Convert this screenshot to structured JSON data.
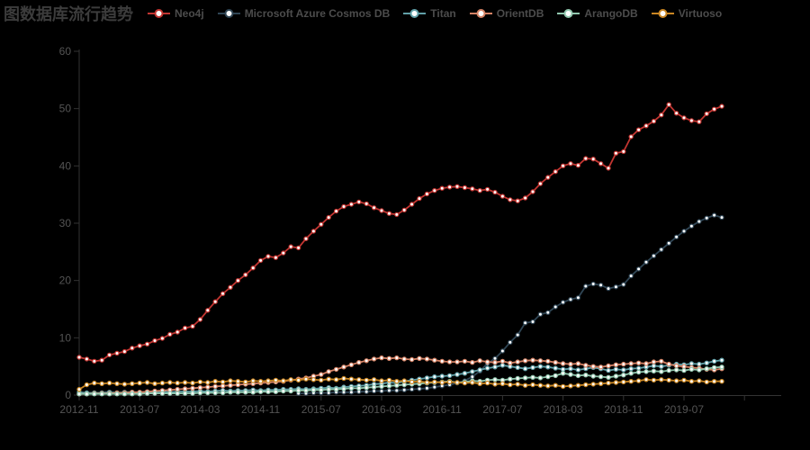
{
  "chart_data": {
    "type": "line",
    "title": "图数据库流行趋势",
    "xlabel": "",
    "ylabel": "",
    "ylim": [
      0,
      60
    ],
    "y_interval": 10,
    "grid": false,
    "legend_position": "top",
    "background": "#000000",
    "axis": {
      "line_color": "#333333",
      "label_color": "#545454"
    },
    "x_tick_interval": 8,
    "x_tick_labels_visible": [
      "2012-11",
      "2013-07",
      "2014-03",
      "2014-11",
      "2015-07",
      "2016-03",
      "2016-11",
      "2017-07",
      "2018-03",
      "2018-11",
      "2019-07"
    ],
    "y_tick_labels": [
      "0",
      "10",
      "20",
      "30",
      "40",
      "50",
      "60"
    ],
    "x": [
      "2012-11",
      "2012-12",
      "2013-01",
      "2013-02",
      "2013-03",
      "2013-04",
      "2013-05",
      "2013-06",
      "2013-07",
      "2013-08",
      "2013-09",
      "2013-10",
      "2013-11",
      "2013-12",
      "2014-01",
      "2014-02",
      "2014-03",
      "2014-04",
      "2014-05",
      "2014-06",
      "2014-07",
      "2014-08",
      "2014-09",
      "2014-10",
      "2014-11",
      "2014-12",
      "2015-01",
      "2015-02",
      "2015-03",
      "2015-04",
      "2015-05",
      "2015-06",
      "2015-07",
      "2015-08",
      "2015-09",
      "2015-10",
      "2015-11",
      "2015-12",
      "2016-01",
      "2016-02",
      "2016-03",
      "2016-04",
      "2016-05",
      "2016-06",
      "2016-07",
      "2016-08",
      "2016-09",
      "2016-10",
      "2016-11",
      "2016-12",
      "2017-01",
      "2017-02",
      "2017-03",
      "2017-04",
      "2017-05",
      "2017-06",
      "2017-07",
      "2017-08",
      "2017-09",
      "2017-10",
      "2017-11",
      "2017-12",
      "2018-01",
      "2018-02",
      "2018-03",
      "2018-04",
      "2018-05",
      "2018-06",
      "2018-07",
      "2018-08",
      "2018-09",
      "2018-10",
      "2018-11",
      "2018-12",
      "2019-01",
      "2019-02",
      "2019-03",
      "2019-04",
      "2019-05",
      "2019-06",
      "2019-07",
      "2019-08",
      "2019-09",
      "2019-10",
      "2019-11",
      "2019-12"
    ],
    "series": [
      {
        "name": "Neo4j",
        "color": "#c23531",
        "values": [
          6.6,
          6.3,
          5.9,
          6.1,
          7.0,
          7.3,
          7.6,
          8.2,
          8.6,
          8.9,
          9.5,
          9.9,
          10.6,
          11.0,
          11.7,
          12.0,
          13.2,
          14.8,
          16.3,
          17.7,
          18.8,
          20.0,
          21.0,
          22.2,
          23.5,
          24.2,
          24.0,
          24.8,
          25.9,
          25.7,
          27.3,
          28.6,
          29.8,
          31.0,
          32.1,
          32.9,
          33.3,
          33.7,
          33.4,
          32.7,
          32.2,
          31.7,
          31.5,
          32.3,
          33.3,
          34.3,
          35.1,
          35.7,
          36.1,
          36.3,
          36.4,
          36.2,
          36.0,
          35.7,
          35.9,
          35.4,
          34.7,
          34.1,
          33.9,
          34.4,
          35.5,
          36.9,
          38.0,
          39.0,
          40.0,
          40.4,
          40.1,
          41.3,
          41.2,
          40.4,
          39.6,
          42.2,
          42.5,
          45.1,
          46.3,
          47.0,
          47.8,
          48.9,
          50.7,
          49.2,
          48.4,
          47.9,
          47.7,
          49.1,
          49.9,
          50.4
        ]
      },
      {
        "name": "Microsoft Azure Cosmos DB",
        "color": "#2f4554",
        "values": [
          null,
          null,
          null,
          null,
          null,
          null,
          null,
          null,
          null,
          null,
          null,
          null,
          null,
          null,
          null,
          null,
          null,
          null,
          null,
          null,
          null,
          null,
          null,
          null,
          null,
          null,
          null,
          null,
          null,
          0.3,
          0.3,
          0.4,
          0.4,
          0.4,
          0.5,
          0.5,
          0.5,
          0.6,
          0.6,
          0.7,
          0.7,
          0.8,
          0.8,
          0.9,
          1.0,
          1.1,
          1.2,
          1.4,
          1.6,
          1.8,
          2.1,
          2.5,
          3.2,
          4.2,
          5.5,
          6.4,
          7.7,
          9.2,
          10.5,
          12.6,
          12.8,
          14.1,
          14.4,
          15.4,
          16.2,
          16.7,
          17.0,
          19.0,
          19.4,
          19.2,
          18.6,
          18.9,
          19.3,
          20.8,
          22.0,
          23.2,
          24.3,
          25.4,
          26.5,
          27.6,
          28.6,
          29.5,
          30.3,
          30.9,
          31.4,
          31.0
        ]
      },
      {
        "name": "Titan",
        "color": "#61a0a8",
        "values": [
          0.5,
          0.4,
          0.4,
          0.4,
          0.5,
          0.4,
          0.5,
          0.5,
          0.4,
          0.5,
          0.5,
          0.6,
          0.5,
          0.6,
          0.6,
          0.6,
          0.7,
          0.6,
          0.7,
          0.8,
          0.7,
          0.8,
          0.8,
          0.9,
          0.8,
          0.9,
          0.9,
          1.0,
          1.0,
          1.1,
          1.0,
          1.1,
          1.2,
          1.3,
          1.2,
          1.4,
          1.5,
          1.6,
          1.7,
          1.9,
          2.0,
          2.2,
          2.1,
          2.4,
          2.6,
          2.8,
          3.0,
          3.2,
          3.3,
          3.4,
          3.6,
          3.8,
          4.1,
          4.4,
          4.7,
          4.9,
          5.2,
          5.0,
          4.8,
          4.6,
          4.8,
          5.0,
          4.9,
          4.7,
          4.5,
          4.6,
          4.4,
          4.6,
          4.8,
          4.6,
          4.3,
          4.5,
          4.4,
          4.6,
          4.7,
          4.9,
          5.1,
          5.0,
          5.2,
          5.4,
          5.3,
          5.5,
          5.4,
          5.6,
          5.9,
          6.1
        ]
      },
      {
        "name": "OrientDB",
        "color": "#d48265",
        "values": [
          0.2,
          0.2,
          0.3,
          0.3,
          0.3,
          0.4,
          0.4,
          0.5,
          0.5,
          0.6,
          0.7,
          0.8,
          0.9,
          1.0,
          1.1,
          1.2,
          1.3,
          1.4,
          1.5,
          1.6,
          1.7,
          1.8,
          1.9,
          2.0,
          2.1,
          2.2,
          2.3,
          2.4,
          2.6,
          2.8,
          3.0,
          3.3,
          3.6,
          4.1,
          4.5,
          4.9,
          5.3,
          5.7,
          6.0,
          6.3,
          6.5,
          6.4,
          6.5,
          6.3,
          6.2,
          6.4,
          6.3,
          6.1,
          5.9,
          5.8,
          5.8,
          5.9,
          5.7,
          6.0,
          5.8,
          5.7,
          5.9,
          5.6,
          5.8,
          6.0,
          6.1,
          6.0,
          5.9,
          5.7,
          5.5,
          5.4,
          5.5,
          5.2,
          5.0,
          4.9,
          5.1,
          5.3,
          5.4,
          5.5,
          5.6,
          5.5,
          5.8,
          5.9,
          5.4,
          5.1,
          5.0,
          4.8,
          4.7,
          4.5,
          4.4,
          4.6
        ]
      },
      {
        "name": "ArangoDB",
        "color": "#91c7ae",
        "values": [
          0.2,
          0.2,
          0.2,
          0.2,
          0.2,
          0.2,
          0.2,
          0.2,
          0.2,
          0.3,
          0.3,
          0.3,
          0.3,
          0.3,
          0.3,
          0.3,
          0.4,
          0.4,
          0.4,
          0.4,
          0.5,
          0.5,
          0.5,
          0.5,
          0.6,
          0.6,
          0.6,
          0.7,
          0.7,
          0.8,
          0.8,
          0.9,
          0.9,
          1.0,
          1.0,
          1.1,
          1.2,
          1.2,
          1.3,
          1.4,
          1.5,
          1.6,
          1.7,
          1.8,
          1.9,
          2.0,
          2.1,
          2.2,
          2.3,
          2.4,
          2.2,
          2.3,
          2.5,
          2.4,
          2.6,
          2.7,
          2.6,
          2.8,
          2.9,
          3.0,
          3.1,
          3.0,
          3.2,
          3.4,
          3.8,
          3.6,
          3.4,
          3.5,
          3.3,
          3.2,
          3.1,
          3.3,
          3.5,
          3.8,
          4.0,
          4.1,
          4.2,
          4.1,
          4.3,
          4.4,
          4.3,
          4.5,
          4.4,
          4.6,
          4.8,
          4.9
        ]
      },
      {
        "name": "Virtuoso",
        "color": "#ca8622",
        "values": [
          1.0,
          1.8,
          2.1,
          2.0,
          2.1,
          2.0,
          1.9,
          2.0,
          2.1,
          2.2,
          2.0,
          2.1,
          2.2,
          2.1,
          2.2,
          2.1,
          2.3,
          2.2,
          2.4,
          2.3,
          2.5,
          2.4,
          2.3,
          2.5,
          2.4,
          2.5,
          2.6,
          2.5,
          2.7,
          2.6,
          2.8,
          2.7,
          2.6,
          2.8,
          2.7,
          2.9,
          2.8,
          2.7,
          2.6,
          2.7,
          2.5,
          2.6,
          2.4,
          2.5,
          2.3,
          2.4,
          2.2,
          2.3,
          2.2,
          2.3,
          2.2,
          2.1,
          2.2,
          2.0,
          2.1,
          1.9,
          2.0,
          1.8,
          1.9,
          1.7,
          1.8,
          1.7,
          1.6,
          1.7,
          1.5,
          1.6,
          1.7,
          1.8,
          1.9,
          2.0,
          2.1,
          2.2,
          2.3,
          2.4,
          2.5,
          2.7,
          2.6,
          2.7,
          2.6,
          2.5,
          2.6,
          2.4,
          2.5,
          2.3,
          2.4,
          2.4
        ]
      }
    ]
  }
}
